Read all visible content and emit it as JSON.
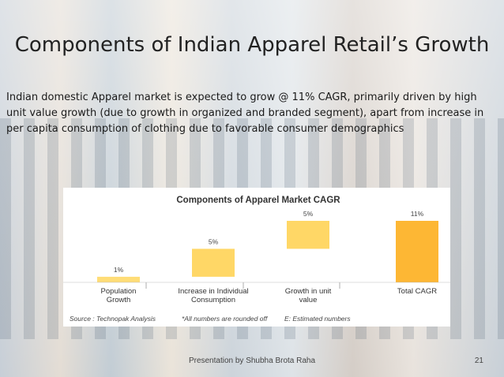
{
  "slide": {
    "title": "Components of Indian Apparel Retail’s Growth",
    "intro": "Indian domestic Apparel market is expected to grow @ 11% CAGR, primarily driven by high unit value growth (due to growth in organized and branded segment), apart from increase in per capita consumption of clothing due to favorable consumer demographics",
    "footer": "Presentation by Shubha Brota Raha",
    "page_number": "21"
  },
  "chart_data": {
    "type": "bar",
    "subtype": "waterfall",
    "title": "Components of Apparel Market  CAGR",
    "categories": [
      "Population Growth",
      "Increase in Individual Consumption",
      "Growth in unit value",
      "Total CAGR"
    ],
    "category_labels": [
      [
        "Population",
        "Growth"
      ],
      [
        "Increase in Individual",
        "Consumption"
      ],
      [
        "Growth in unit",
        "value"
      ],
      [
        "Total CAGR"
      ]
    ],
    "values": [
      1,
      5,
      5,
      11
    ],
    "bases": [
      0,
      1,
      6,
      0
    ],
    "value_labels": [
      "1%",
      "5%",
      "5%",
      "11%"
    ],
    "colors": [
      "#ffdd77",
      "#ffd766",
      "#ffd766",
      "#fdb734"
    ],
    "ylim": [
      0,
      11
    ],
    "grid": false,
    "notes": [
      "Source : Technopak Analysis",
      "*All numbers are rounded off",
      "E: Estimated numbers"
    ]
  }
}
